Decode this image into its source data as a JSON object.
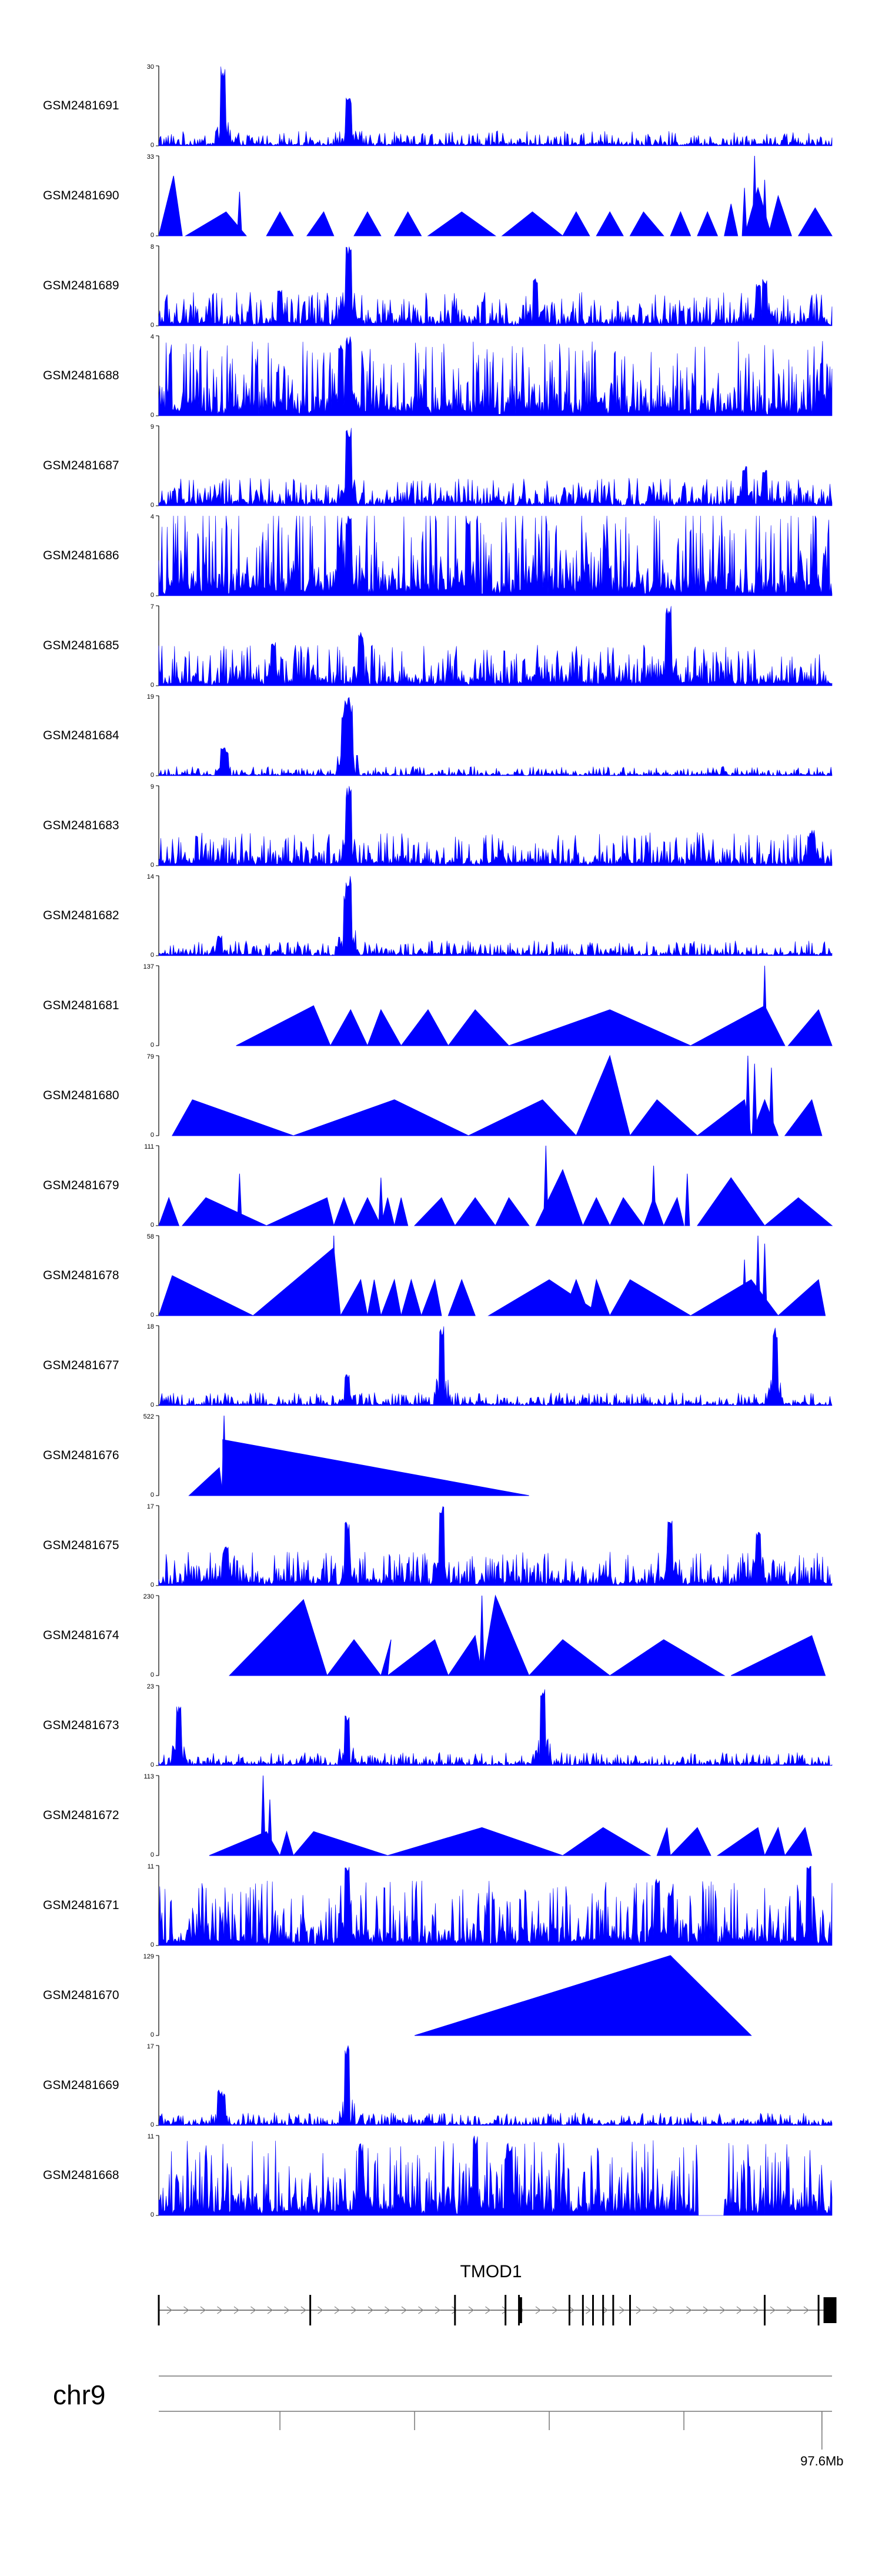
{
  "chart_data": {
    "type": "area",
    "title": "",
    "xlabel": "",
    "ylabel": "",
    "grid": false,
    "legend": "none",
    "chromosome_label": "chr9",
    "coordinate_tick_label": "97.6Mb",
    "gene_label": "TMOD1",
    "tracks": [
      {
        "name": "GSM2481691",
        "ymax": 30,
        "ymin_label": "0",
        "ymax_label": "30",
        "style": "noisy",
        "base": 0.08,
        "peaks": [
          [
            0.095,
            1.0
          ],
          [
            0.282,
            0.6
          ]
        ]
      },
      {
        "name": "GSM2481690",
        "ymax": 33,
        "ymin_label": "0",
        "ymax_label": "33",
        "style": "tri",
        "tris": [
          [
            0.0,
            0.022,
            0.035,
            0.75
          ],
          [
            0.04,
            0.1,
            0.13,
            0.3
          ],
          [
            0.16,
            0.18,
            0.2,
            0.3
          ],
          [
            0.22,
            0.245,
            0.26,
            0.3
          ],
          [
            0.29,
            0.31,
            0.33,
            0.3
          ],
          [
            0.35,
            0.37,
            0.39,
            0.3
          ],
          [
            0.4,
            0.45,
            0.5,
            0.3
          ],
          [
            0.51,
            0.555,
            0.6,
            0.3
          ],
          [
            0.6,
            0.62,
            0.64,
            0.3
          ],
          [
            0.65,
            0.67,
            0.69,
            0.3
          ],
          [
            0.7,
            0.72,
            0.75,
            0.3
          ],
          [
            0.76,
            0.775,
            0.79,
            0.3
          ],
          [
            0.8,
            0.815,
            0.83,
            0.3
          ],
          [
            0.84,
            0.85,
            0.86,
            0.4
          ],
          [
            0.87,
            0.89,
            0.91,
            0.6
          ],
          [
            0.905,
            0.92,
            0.94,
            0.5
          ],
          [
            0.95,
            0.975,
            1.0,
            0.35
          ]
        ],
        "peaks": [
          [
            0.885,
            1.0
          ],
          [
            0.87,
            0.6
          ],
          [
            0.9,
            0.7
          ],
          [
            0.12,
            0.55
          ]
        ],
        "base": 0.05
      },
      {
        "name": "GSM2481689",
        "ymax": 8,
        "ymin_label": "0",
        "ymax_label": "8",
        "style": "noisy",
        "base": 0.18,
        "peaks": [
          [
            0.282,
            1.0
          ],
          [
            0.18,
            0.45
          ],
          [
            0.56,
            0.6
          ],
          [
            0.89,
            0.55
          ],
          [
            0.9,
            0.6
          ]
        ]
      },
      {
        "name": "GSM2481688",
        "ymax": 4,
        "ymin_label": "0",
        "ymax_label": "4",
        "style": "noisy",
        "base": 0.4,
        "peaks": [
          [
            0.282,
            1.0
          ],
          [
            0.27,
            0.9
          ]
        ]
      },
      {
        "name": "GSM2481687",
        "ymax": 9,
        "ymin_label": "0",
        "ymax_label": "9",
        "style": "noisy",
        "base": 0.15,
        "peaks": [
          [
            0.282,
            1.0
          ],
          [
            0.87,
            0.5
          ],
          [
            0.9,
            0.45
          ]
        ]
      },
      {
        "name": "GSM2481686",
        "ymax": 4,
        "ymin_label": "0",
        "ymax_label": "4",
        "style": "noisy",
        "base": 0.5,
        "peaks": [
          [
            0.282,
            1.0
          ],
          [
            0.46,
            1.0
          ]
        ]
      },
      {
        "name": "GSM2481685",
        "ymax": 7,
        "ymin_label": "0",
        "ymax_label": "7",
        "style": "noisy",
        "base": 0.22,
        "peaks": [
          [
            0.757,
            1.0
          ],
          [
            0.3,
            0.7
          ],
          [
            0.17,
            0.55
          ]
        ]
      },
      {
        "name": "GSM2481684",
        "ymax": 19,
        "ymin_label": "0",
        "ymax_label": "19",
        "style": "noisy",
        "base": 0.05,
        "peaks": [
          [
            0.28,
            1.0
          ],
          [
            0.275,
            0.85
          ],
          [
            0.285,
            0.9
          ],
          [
            0.095,
            0.35
          ],
          [
            0.1,
            0.3
          ]
        ]
      },
      {
        "name": "GSM2481683",
        "ymax": 9,
        "ymin_label": "0",
        "ymax_label": "9",
        "style": "noisy",
        "base": 0.18,
        "peaks": [
          [
            0.282,
            1.0
          ],
          [
            0.97,
            0.45
          ]
        ]
      },
      {
        "name": "GSM2481682",
        "ymax": 14,
        "ymin_label": "0",
        "ymax_label": "14",
        "style": "noisy",
        "base": 0.08,
        "peaks": [
          [
            0.282,
            1.0
          ],
          [
            0.278,
            0.75
          ],
          [
            0.09,
            0.25
          ]
        ]
      },
      {
        "name": "GSM2481681",
        "ymax": 137,
        "ymin_label": "0",
        "ymax_label": "137",
        "style": "tri",
        "tris": [
          [
            0.115,
            0.23,
            0.255,
            0.5
          ],
          [
            0.255,
            0.285,
            0.31,
            0.45
          ],
          [
            0.31,
            0.33,
            0.36,
            0.45
          ],
          [
            0.36,
            0.4,
            0.43,
            0.45
          ],
          [
            0.43,
            0.47,
            0.52,
            0.45
          ],
          [
            0.52,
            0.67,
            0.79,
            0.45
          ],
          [
            0.79,
            0.9,
            0.93,
            0.5
          ],
          [
            0.935,
            0.98,
            1.0,
            0.45
          ]
        ],
        "peaks": [
          [
            0.9,
            1.0
          ]
        ],
        "base": 0.0
      },
      {
        "name": "GSM2481680",
        "ymax": 79,
        "ymin_label": "0",
        "ymax_label": "79",
        "style": "tri",
        "tris": [
          [
            0.02,
            0.05,
            0.2,
            0.45
          ],
          [
            0.2,
            0.35,
            0.46,
            0.45
          ],
          [
            0.46,
            0.57,
            0.62,
            0.45
          ],
          [
            0.62,
            0.67,
            0.7,
            1.0
          ],
          [
            0.7,
            0.74,
            0.8,
            0.45
          ],
          [
            0.8,
            0.87,
            0.88,
            0.45
          ],
          [
            0.88,
            0.9,
            0.92,
            0.45
          ],
          [
            0.93,
            0.97,
            0.985,
            0.45
          ]
        ],
        "peaks": [
          [
            0.875,
            1.0
          ],
          [
            0.885,
            0.9
          ],
          [
            0.91,
            0.85
          ]
        ],
        "base": 0.0
      },
      {
        "name": "GSM2481679",
        "ymax": 111,
        "ymin_label": "0",
        "ymax_label": "111",
        "style": "tri",
        "tris": [
          [
            0.0,
            0.015,
            0.03,
            0.35
          ],
          [
            0.035,
            0.07,
            0.16,
            0.35
          ],
          [
            0.16,
            0.25,
            0.26,
            0.35
          ],
          [
            0.26,
            0.275,
            0.29,
            0.35
          ],
          [
            0.29,
            0.31,
            0.33,
            0.35
          ],
          [
            0.33,
            0.34,
            0.35,
            0.35
          ],
          [
            0.35,
            0.36,
            0.37,
            0.35
          ],
          [
            0.38,
            0.42,
            0.44,
            0.35
          ],
          [
            0.44,
            0.47,
            0.5,
            0.35
          ],
          [
            0.5,
            0.52,
            0.55,
            0.35
          ],
          [
            0.56,
            0.6,
            0.63,
            0.7
          ],
          [
            0.63,
            0.65,
            0.67,
            0.35
          ],
          [
            0.67,
            0.69,
            0.72,
            0.35
          ],
          [
            0.72,
            0.735,
            0.75,
            0.35
          ],
          [
            0.75,
            0.77,
            0.78,
            0.35
          ],
          [
            0.8,
            0.85,
            0.9,
            0.6
          ],
          [
            0.9,
            0.95,
            1.0,
            0.35
          ]
        ],
        "peaks": [
          [
            0.575,
            1.0
          ],
          [
            0.12,
            0.65
          ],
          [
            0.33,
            0.6
          ],
          [
            0.735,
            0.75
          ],
          [
            0.785,
            0.65
          ]
        ],
        "base": 0.0
      },
      {
        "name": "GSM2481678",
        "ymax": 58,
        "ymin_label": "0",
        "ymax_label": "58",
        "style": "tri",
        "tris": [
          [
            0.0,
            0.02,
            0.14,
            0.5
          ],
          [
            0.14,
            0.26,
            0.27,
            0.85
          ],
          [
            0.27,
            0.3,
            0.31,
            0.45
          ],
          [
            0.31,
            0.32,
            0.33,
            0.45
          ],
          [
            0.33,
            0.35,
            0.36,
            0.45
          ],
          [
            0.36,
            0.375,
            0.39,
            0.45
          ],
          [
            0.39,
            0.41,
            0.42,
            0.45
          ],
          [
            0.43,
            0.45,
            0.47,
            0.45
          ],
          [
            0.49,
            0.58,
            0.66,
            0.45
          ],
          [
            0.6,
            0.62,
            0.64,
            0.45
          ],
          [
            0.64,
            0.65,
            0.67,
            0.45
          ],
          [
            0.67,
            0.7,
            0.79,
            0.45
          ],
          [
            0.79,
            0.88,
            0.92,
            0.45
          ],
          [
            0.92,
            0.98,
            0.99,
            0.45
          ]
        ],
        "peaks": [
          [
            0.26,
            1.0
          ],
          [
            0.89,
            1.0
          ],
          [
            0.9,
            0.9
          ],
          [
            0.87,
            0.7
          ]
        ],
        "base": 0.0
      },
      {
        "name": "GSM2481677",
        "ymax": 18,
        "ymin_label": "0",
        "ymax_label": "18",
        "style": "noisy",
        "base": 0.07,
        "peaks": [
          [
            0.42,
            1.0
          ],
          [
            0.915,
            1.0
          ],
          [
            0.28,
            0.4
          ]
        ]
      },
      {
        "name": "GSM2481676",
        "ymax": 522,
        "ymin_label": "0",
        "ymax_label": "522",
        "style": "tri",
        "tris": [
          [
            0.045,
            0.09,
            0.095,
            0.35
          ],
          [
            0.095,
            0.095,
            0.55,
            0.7
          ]
        ],
        "peaks": [
          [
            0.097,
            1.0
          ]
        ],
        "base": 0.0
      },
      {
        "name": "GSM2481675",
        "ymax": 17,
        "ymin_label": "0",
        "ymax_label": "17",
        "style": "noisy",
        "base": 0.18,
        "peaks": [
          [
            0.42,
            1.0
          ],
          [
            0.28,
            0.8
          ],
          [
            0.1,
            0.5
          ],
          [
            0.76,
            0.85
          ],
          [
            0.89,
            0.7
          ]
        ]
      },
      {
        "name": "GSM2481674",
        "ymax": 230,
        "ymin_label": "0",
        "ymax_label": "230",
        "style": "tri",
        "tris": [
          [
            0.105,
            0.215,
            0.25,
            0.95
          ],
          [
            0.25,
            0.29,
            0.33,
            0.45
          ],
          [
            0.33,
            0.345,
            0.34,
            0.45
          ],
          [
            0.34,
            0.41,
            0.43,
            0.45
          ],
          [
            0.43,
            0.47,
            0.48,
            0.5
          ],
          [
            0.48,
            0.5,
            0.55,
            1.0
          ],
          [
            0.55,
            0.6,
            0.67,
            0.45
          ],
          [
            0.67,
            0.75,
            0.84,
            0.45
          ],
          [
            0.85,
            0.97,
            0.99,
            0.5
          ]
        ],
        "peaks": [
          [
            0.48,
            1.0
          ],
          [
            0.215,
            0.95
          ]
        ],
        "base": 0.0
      },
      {
        "name": "GSM2481673",
        "ymax": 23,
        "ymin_label": "0",
        "ymax_label": "23",
        "style": "noisy",
        "base": 0.07,
        "peaks": [
          [
            0.57,
            1.0
          ],
          [
            0.28,
            0.65
          ],
          [
            0.03,
            0.75
          ]
        ]
      },
      {
        "name": "GSM2481672",
        "ymax": 113,
        "ymin_label": "0",
        "ymax_label": "113",
        "style": "tri",
        "tris": [
          [
            0.075,
            0.16,
            0.18,
            0.3
          ],
          [
            0.18,
            0.19,
            0.2,
            0.3
          ],
          [
            0.2,
            0.23,
            0.34,
            0.3
          ],
          [
            0.34,
            0.48,
            0.6,
            0.35
          ],
          [
            0.6,
            0.66,
            0.73,
            0.35
          ],
          [
            0.74,
            0.755,
            0.76,
            0.35
          ],
          [
            0.76,
            0.8,
            0.82,
            0.35
          ],
          [
            0.83,
            0.89,
            0.9,
            0.35
          ],
          [
            0.9,
            0.92,
            0.93,
            0.35
          ],
          [
            0.93,
            0.96,
            0.97,
            0.35
          ]
        ],
        "peaks": [
          [
            0.155,
            1.0
          ],
          [
            0.165,
            0.7
          ]
        ],
        "base": 0.0
      },
      {
        "name": "GSM2481671",
        "ymax": 11,
        "ymin_label": "0",
        "ymax_label": "11",
        "style": "noisy",
        "base": 0.35,
        "peaks": [
          [
            0.28,
            1.0
          ],
          [
            0.965,
            1.0
          ],
          [
            0.74,
            0.85
          ],
          [
            0.76,
            0.7
          ]
        ]
      },
      {
        "name": "GSM2481670",
        "ymax": 129,
        "ymin_label": "0",
        "ymax_label": "129",
        "style": "tri",
        "tris": [
          [
            0.38,
            0.76,
            0.88,
            1.0
          ]
        ],
        "peaks": [],
        "base": 0.0
      },
      {
        "name": "GSM2481669",
        "ymax": 17,
        "ymin_label": "0",
        "ymax_label": "17",
        "style": "noisy",
        "base": 0.07,
        "peaks": [
          [
            0.28,
            1.0
          ],
          [
            0.09,
            0.45
          ],
          [
            0.095,
            0.4
          ]
        ]
      },
      {
        "name": "GSM2481668",
        "ymax": 11,
        "ymin_label": "0",
        "ymax_label": "11",
        "style": "noisy",
        "base": 0.4,
        "peaks": [
          [
            0.47,
            1.0
          ],
          [
            0.3,
            0.9
          ],
          [
            0.52,
            0.9
          ]
        ],
        "gap": [
          0.8,
          0.84
        ]
      }
    ],
    "gene_model": {
      "exons": [
        0.0,
        0.225,
        0.44,
        0.515,
        0.535,
        0.61,
        0.63,
        0.645,
        0.66,
        0.675,
        0.7,
        0.9,
        0.98
      ],
      "thick_exons": [
        0.537,
        0.99
      ]
    },
    "axis_ticks": [
      0.18,
      0.38,
      0.58,
      0.78,
      0.985
    ]
  }
}
